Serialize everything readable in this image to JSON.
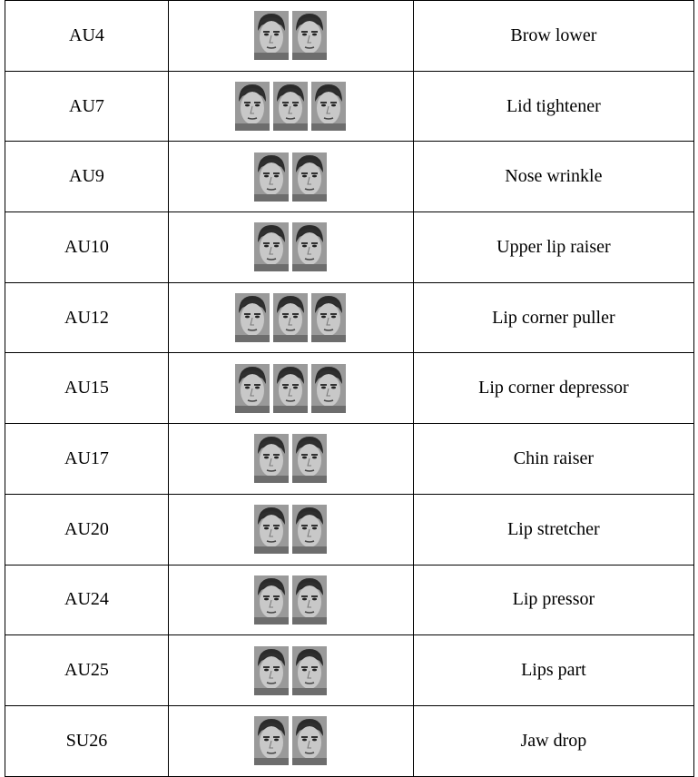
{
  "table": {
    "rows": [
      [
        "AU4",
        "Brow lower"
      ],
      [
        "AU7",
        "Lid tightener"
      ],
      [
        "AU9",
        "Nose wrinkle"
      ],
      [
        "AU10",
        "Upper lip raiser"
      ],
      [
        "AU12",
        "Lip corner puller"
      ],
      [
        "AU15",
        "Lip corner depressor"
      ],
      [
        "AU17",
        "Chin raiser"
      ],
      [
        "AU20",
        "Lip stretcher"
      ],
      [
        "AU24",
        "Lip pressor"
      ],
      [
        "AU25",
        "Lips part"
      ],
      [
        "SU26",
        "Jaw drop"
      ]
    ]
  }
}
